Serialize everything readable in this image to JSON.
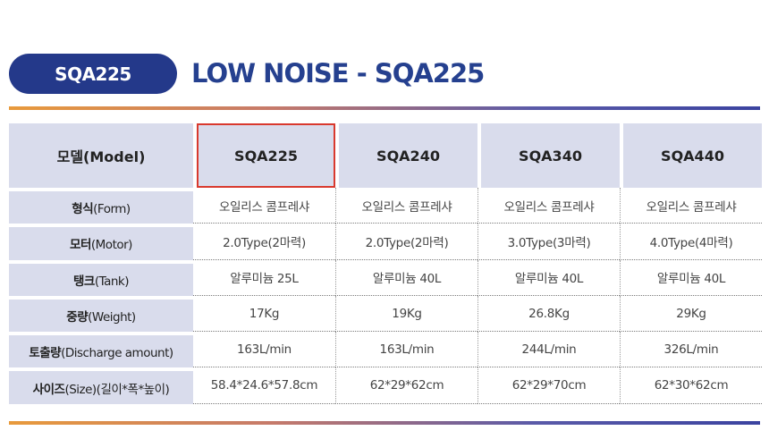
{
  "header": {
    "badge": "SQA225",
    "title": "LOW NOISE - SQA225"
  },
  "table": {
    "corner": "모델(Model)",
    "models": [
      "SQA225",
      "SQA240",
      "SQA340",
      "SQA440"
    ],
    "highlighted_model": "SQA225",
    "rows": [
      {
        "label_ko": "형식",
        "label_en": "(Form)",
        "cells": [
          "오일리스 콤프레샤",
          "오일리스 콤프레샤",
          "오일리스 콤프레샤",
          "오일리스 콤프레샤"
        ]
      },
      {
        "label_ko": "모터",
        "label_en": "(Motor)",
        "cells": [
          "2.0Type(2마력)",
          "2.0Type(2마력)",
          "3.0Type(3마력)",
          "4.0Type(4마력)"
        ]
      },
      {
        "label_ko": "탱크",
        "label_en": "(Tank)",
        "cells": [
          "알루미늄 25L",
          "알루미늄 40L",
          "알루미늄 40L",
          "알루미늄 40L"
        ]
      },
      {
        "label_ko": "중량",
        "label_en": "(Weight)",
        "cells": [
          "17Kg",
          "19Kg",
          "26.8Kg",
          "29Kg"
        ]
      },
      {
        "label_ko": "토출량",
        "label_en": "(Discharge amount)",
        "cells": [
          "163L/min",
          "163L/min",
          "244L/min",
          "326L/min"
        ]
      },
      {
        "label_ko": "사이즈",
        "label_en": "(Size)(길이*폭*높이)",
        "cells": [
          "58.4*24.6*57.8cm",
          "62*29*62cm",
          "62*29*70cm",
          "62*30*62cm"
        ]
      }
    ]
  },
  "colors": {
    "brand_navy": "#24398a",
    "title_blue": "#25408f",
    "header_cell_bg": "#d9dcec",
    "highlight_border": "#d9392e"
  }
}
